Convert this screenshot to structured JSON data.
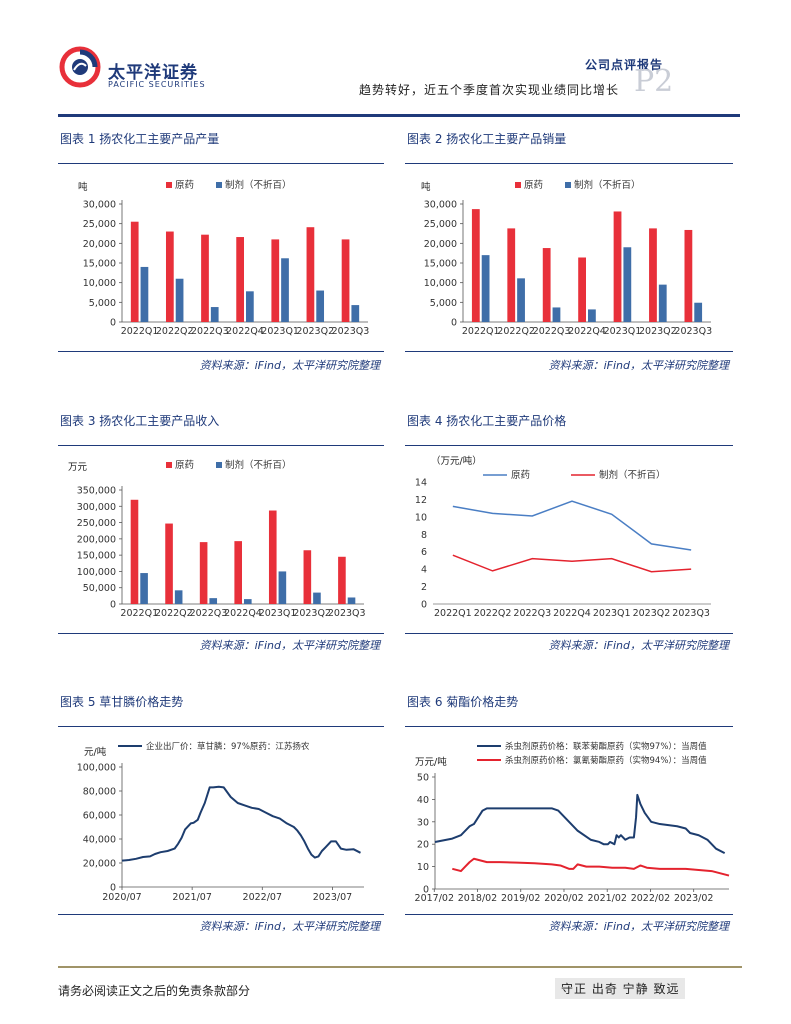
{
  "header": {
    "company_cn": "太平洋证券",
    "company_en": "PACIFIC SECURITIES",
    "report_type": "公司点评报告",
    "report_title": "趋势转好，近五个季度首次实现业绩同比增长",
    "page_number": "P2"
  },
  "colors": {
    "primary": "#1f3a7a",
    "red": "#e8303a",
    "blue": "#3f6ea8",
    "line_blue": "#4a7ec4",
    "line_red": "#e4232e",
    "dark_blue": "#1d3d6e"
  },
  "source_note": "资料来源：iFind，太平洋研究院整理",
  "footer": {
    "disclaimer": "请务必阅读正文之后的免责条款部分",
    "motto": "守正 出奇 宁静 致远"
  },
  "charts": [
    {
      "caption": "图表 1  扬农化工主要产品产量",
      "unit": "吨",
      "legend": [
        "原药",
        "制剂（不折百）"
      ]
    },
    {
      "caption": "图表 2  扬农化工主要产品销量",
      "unit": "吨",
      "legend": [
        "原药",
        "制剂（不折百）"
      ]
    },
    {
      "caption": "图表 3  扬农化工主要产品收入",
      "unit": "万元",
      "legend": [
        "原药",
        "制剂（不折百）"
      ]
    },
    {
      "caption": "图表 4  扬农化工主要产品价格",
      "unit": "（万元/吨）",
      "legend": [
        "原药",
        "制剂（不折百）"
      ]
    },
    {
      "caption": "图表 5  草甘膦价格走势",
      "unit": "元/吨",
      "legend": [
        "企业出厂价：草甘膦：97%原药：江苏扬农"
      ]
    },
    {
      "caption": "图表 6  菊酯价格走势",
      "unit": "万元/吨",
      "legend": [
        "杀虫剂原药价格：联苯菊酯原药（实物97%）：当周值",
        "杀虫剂原药价格：氯氰菊酯原药（实物94%）：当周值"
      ]
    }
  ],
  "chart_data": [
    {
      "type": "bar",
      "title": "扬农化工主要产品产量",
      "ylabel": "吨",
      "categories": [
        "2022Q1",
        "2022Q2",
        "2022Q3",
        "2022Q4",
        "2023Q1",
        "2023Q2",
        "2023Q3"
      ],
      "series": [
        {
          "name": "原药",
          "values": [
            25500,
            23000,
            22200,
            21600,
            21000,
            24100,
            21000
          ]
        },
        {
          "name": "制剂（不折百）",
          "values": [
            14000,
            11000,
            3800,
            7800,
            16200,
            8000,
            4300
          ]
        }
      ],
      "ylim": [
        0,
        30000
      ],
      "yticks": [
        0,
        5000,
        10000,
        15000,
        20000,
        25000,
        30000
      ],
      "ytick_labels": [
        "0",
        "5,000",
        "10,000",
        "15,000",
        "20,000",
        "25,000",
        "30,000"
      ],
      "legend_position": "top"
    },
    {
      "type": "bar",
      "title": "扬农化工主要产品销量",
      "ylabel": "吨",
      "categories": [
        "2022Q1",
        "2022Q2",
        "2022Q3",
        "2022Q4",
        "2023Q1",
        "2023Q2",
        "2023Q3"
      ],
      "series": [
        {
          "name": "原药",
          "values": [
            28700,
            23800,
            18800,
            16400,
            28100,
            23800,
            23400
          ]
        },
        {
          "name": "制剂（不折百）",
          "values": [
            17000,
            11100,
            3700,
            3200,
            19000,
            9500,
            4900
          ]
        }
      ],
      "ylim": [
        0,
        30000
      ],
      "yticks": [
        0,
        5000,
        10000,
        15000,
        20000,
        25000,
        30000
      ],
      "ytick_labels": [
        "0",
        "5,000",
        "10,000",
        "15,000",
        "20,000",
        "25,000",
        "30,000"
      ],
      "legend_position": "top"
    },
    {
      "type": "bar",
      "title": "扬农化工主要产品收入",
      "ylabel": "万元",
      "categories": [
        "2022Q1",
        "2022Q2",
        "2022Q3",
        "2022Q4",
        "2023Q1",
        "2023Q2",
        "2023Q3"
      ],
      "series": [
        {
          "name": "原药",
          "values": [
            320000,
            247000,
            190000,
            193000,
            287000,
            165000,
            145000
          ]
        },
        {
          "name": "制剂（不折百）",
          "values": [
            95000,
            42000,
            18000,
            15000,
            100000,
            35000,
            20000
          ]
        }
      ],
      "ylim": [
        0,
        350000
      ],
      "yticks": [
        0,
        50000,
        100000,
        150000,
        200000,
        250000,
        300000,
        350000
      ],
      "ytick_labels": [
        "0",
        "50,000",
        "100,000",
        "150,000",
        "200,000",
        "250,000",
        "300,000",
        "350,000"
      ],
      "legend_position": "top"
    },
    {
      "type": "line",
      "title": "扬农化工主要产品价格",
      "ylabel": "（万元/吨）",
      "categories": [
        "2022Q1",
        "2022Q2",
        "2022Q3",
        "2022Q4",
        "2023Q1",
        "2023Q2",
        "2023Q3"
      ],
      "series": [
        {
          "name": "原药",
          "values": [
            11.2,
            10.4,
            10.1,
            11.8,
            10.3,
            6.9,
            6.2
          ]
        },
        {
          "name": "制剂（不折百）",
          "values": [
            5.6,
            3.8,
            5.2,
            4.9,
            5.2,
            3.7,
            4.0
          ]
        }
      ],
      "ylim": [
        0,
        14
      ],
      "yticks": [
        0,
        2,
        4,
        6,
        8,
        10,
        12,
        14
      ],
      "ytick_labels": [
        "0",
        "2",
        "4",
        "6",
        "8",
        "10",
        "12",
        "14"
      ],
      "legend_position": "top"
    },
    {
      "type": "line",
      "title": "草甘膦价格走势",
      "ylabel": "元/吨",
      "x_ticks": [
        "2020/07",
        "2021/07",
        "2022/07",
        "2023/07"
      ],
      "x_range": [
        2020.5,
        2023.95
      ],
      "series": [
        {
          "name": "企业出厂价：草甘膦：97%原药：江苏扬农",
          "x": [
            2020.5,
            2020.6,
            2020.7,
            2020.8,
            2020.9,
            2020.97,
            2021.05,
            2021.15,
            2021.25,
            2021.3,
            2021.35,
            2021.4,
            2021.48,
            2021.52,
            2021.58,
            2021.62,
            2021.68,
            2021.75,
            2021.8,
            2021.88,
            2021.95,
            2022.05,
            2022.15,
            2022.25,
            2022.35,
            2022.45,
            2022.55,
            2022.65,
            2022.75,
            2022.85,
            2022.95,
            2023.0,
            2023.05,
            2023.1,
            2023.15,
            2023.2,
            2023.25,
            2023.3,
            2023.35,
            2023.4,
            2023.48,
            2023.55,
            2023.62,
            2023.7,
            2023.8,
            2023.9
          ],
          "values": [
            22000,
            22500,
            23500,
            25000,
            25500,
            27500,
            29000,
            30000,
            32000,
            36000,
            41000,
            48000,
            53000,
            53500,
            56000,
            62000,
            70000,
            83000,
            83000,
            83500,
            83000,
            75000,
            70000,
            68000,
            66000,
            65000,
            62000,
            59000,
            57000,
            53000,
            50000,
            47000,
            43000,
            38000,
            32000,
            27000,
            24500,
            25500,
            30000,
            33000,
            38000,
            38000,
            32000,
            31000,
            31500,
            28500
          ]
        }
      ],
      "ylim": [
        0,
        100000
      ],
      "yticks": [
        0,
        20000,
        40000,
        60000,
        80000,
        100000
      ],
      "ytick_labels": [
        "0",
        "20,000",
        "40,000",
        "60,000",
        "80,000",
        "100,000"
      ],
      "legend_position": "top"
    },
    {
      "type": "line",
      "title": "菊酯价格走势",
      "ylabel": "万元/吨",
      "x_ticks": [
        "2017/02",
        "2018/02",
        "2019/02",
        "2020/02",
        "2021/02",
        "2022/02",
        "2023/02"
      ],
      "x_range": [
        2017.1,
        2023.9
      ],
      "series": [
        {
          "name": "杀虫剂原药价格：联苯菊酯原药（实物97%）：当周值",
          "x": [
            2017.1,
            2017.5,
            2017.7,
            2017.9,
            2018.0,
            2018.1,
            2018.2,
            2018.3,
            2018.5,
            2019.0,
            2019.4,
            2019.8,
            2019.95,
            2020.1,
            2020.2,
            2020.4,
            2020.7,
            2020.9,
            2021.0,
            2021.1,
            2021.15,
            2021.25,
            2021.3,
            2021.35,
            2021.4,
            2021.5,
            2021.6,
            2021.7,
            2021.75,
            2021.78,
            2021.85,
            2021.95,
            2022.1,
            2022.3,
            2022.5,
            2022.7,
            2022.9,
            2023.0,
            2023.2,
            2023.4,
            2023.6,
            2023.8
          ],
          "values": [
            21,
            22.5,
            24,
            28,
            29,
            32,
            35,
            36,
            36,
            36,
            36,
            36,
            35,
            32,
            30,
            26,
            22,
            21,
            20,
            20,
            21,
            20,
            24,
            23,
            24,
            22,
            23,
            23,
            32,
            42,
            38,
            34,
            30,
            29,
            28.5,
            28,
            27,
            25,
            24,
            22,
            18,
            16
          ]
        },
        {
          "name": "杀虫剂原药价格：氯氰菊酯原药（实物94%）：当周值",
          "x": [
            2017.5,
            2017.7,
            2017.8,
            2017.9,
            2018.0,
            2018.1,
            2018.2,
            2018.3,
            2018.6,
            2019.0,
            2019.4,
            2019.8,
            2020.0,
            2020.2,
            2020.3,
            2020.4,
            2020.6,
            2020.9,
            2021.2,
            2021.5,
            2021.7,
            2021.85,
            2022.0,
            2022.3,
            2022.6,
            2022.9,
            2023.2,
            2023.5,
            2023.7,
            2023.9
          ],
          "values": [
            9,
            8,
            10,
            12,
            13.5,
            13,
            12.5,
            12,
            12,
            11.8,
            11.5,
            11,
            10.5,
            9,
            9,
            11,
            10,
            10,
            9.5,
            9.5,
            9,
            10.5,
            9.5,
            9,
            9,
            9,
            8.5,
            8,
            7,
            6
          ]
        }
      ],
      "ylim": [
        0,
        50
      ],
      "yticks": [
        0,
        10,
        20,
        30,
        40,
        50
      ],
      "ytick_labels": [
        "0",
        "10",
        "20",
        "30",
        "40",
        "50"
      ],
      "legend_position": "top"
    }
  ]
}
